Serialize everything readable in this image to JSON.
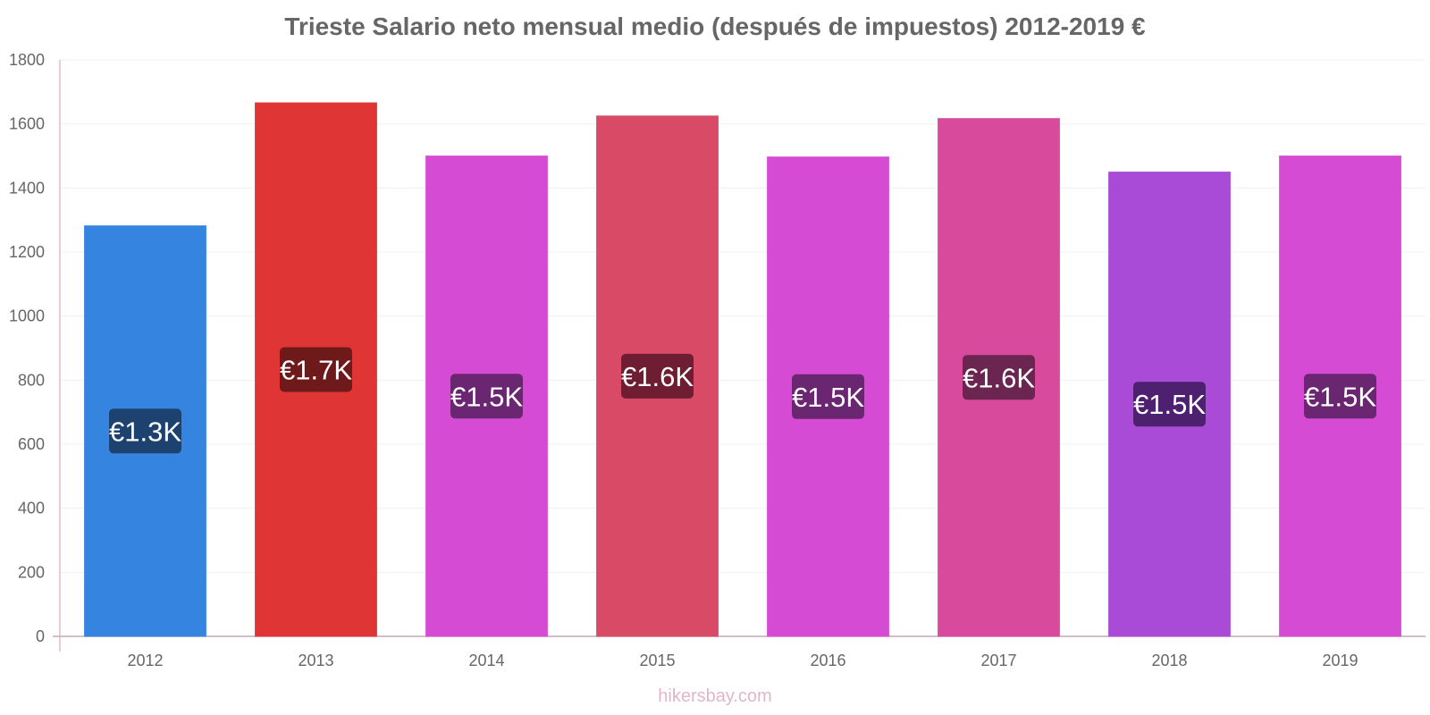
{
  "chart_data": {
    "type": "bar",
    "title": "Trieste Salario neto mensual medio (después de impuestos) 2012-2019 €",
    "categories": [
      "2012",
      "2013",
      "2014",
      "2015",
      "2016",
      "2017",
      "2018",
      "2019"
    ],
    "values": [
      1282,
      1666,
      1500,
      1625,
      1497,
      1617,
      1450,
      1500
    ],
    "data_labels": [
      "€1.3K",
      "€1.7K",
      "€1.5K",
      "€1.6K",
      "€1.5K",
      "€1.6K",
      "€1.5K",
      "€1.5K"
    ],
    "bar_colors": [
      "#3584e0",
      "#e03535",
      "#d64bd4",
      "#d84a66",
      "#d64bd4",
      "#d84a9c",
      "#a94bd6",
      "#d64bd4"
    ],
    "label_box_colors": [
      "#1e4270",
      "#6e1a1a",
      "#6a2670",
      "#6e1d33",
      "#6a2670",
      "#6a2550",
      "#4e2170",
      "#6a2670"
    ],
    "ylim": [
      0,
      1800
    ],
    "yticks": [
      0,
      200,
      400,
      600,
      800,
      1000,
      1200,
      1400,
      1600,
      1800
    ],
    "xlabel": "",
    "ylabel": "",
    "grid": true,
    "legend": "none"
  },
  "watermark": "hikersbay.com"
}
